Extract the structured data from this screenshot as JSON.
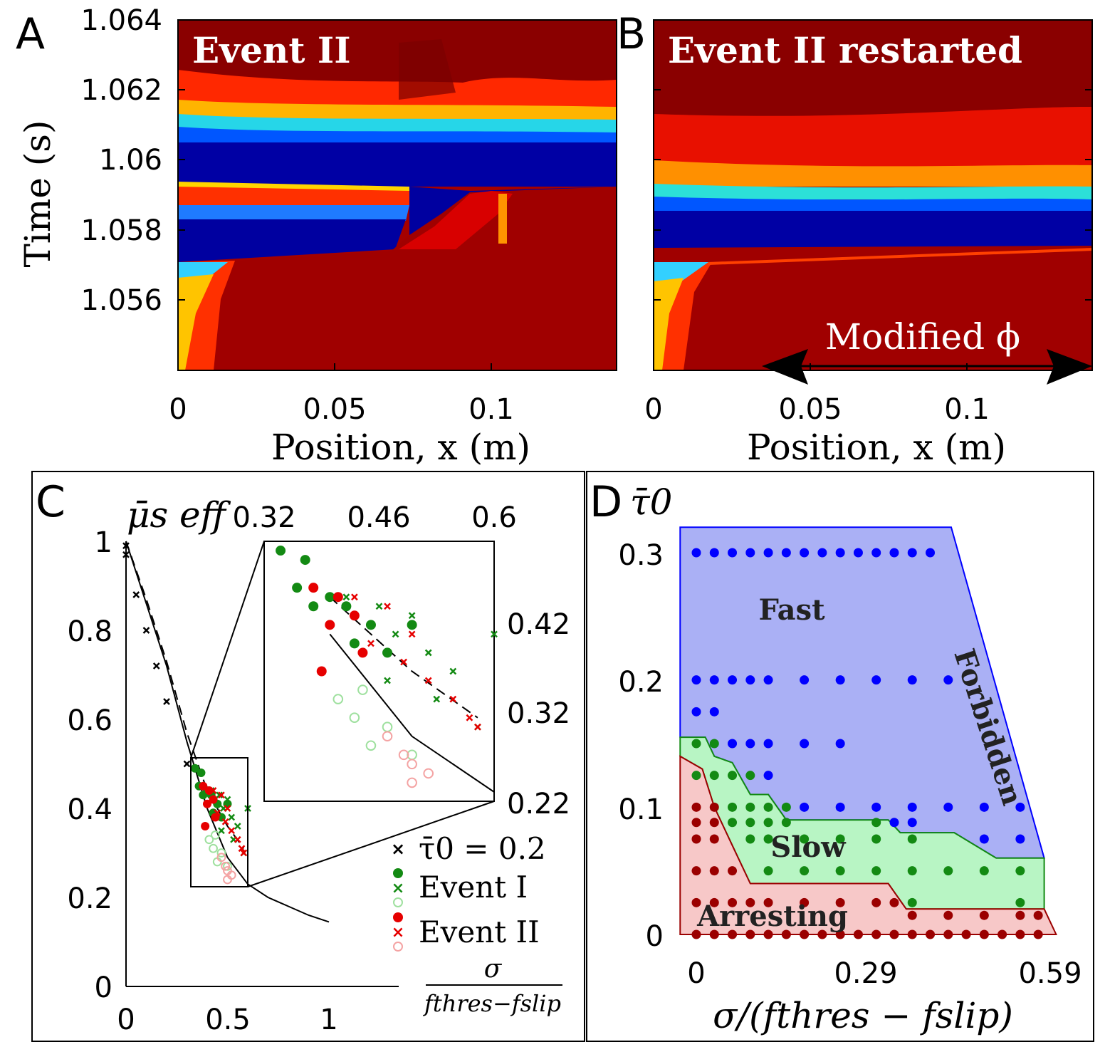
{
  "panelA": {
    "letter": "A",
    "title": "Event II",
    "ylabel": "Time (s)",
    "xlabel": "Position, x (m)",
    "yticks": [
      "1.064",
      "1.062",
      "1.06",
      "1.058",
      "1.056"
    ],
    "xticks": [
      "0",
      "0.05",
      "0.1"
    ]
  },
  "panelB": {
    "letter": "B",
    "title": "Event II restarted",
    "xlabel": "Position, x (m)",
    "xticks": [
      "0",
      "0.05",
      "0.1"
    ],
    "annotation": "Modified ϕ"
  },
  "panelC": {
    "letter": "C",
    "ylabel": "μ̄s eff",
    "xlabel_num": "σ",
    "xlabel_den": "fthres−fslip",
    "yticks": [
      "1",
      "0.8",
      "0.6",
      "0.4",
      "0.2",
      "0"
    ],
    "xticks": [
      "0",
      "0.5",
      "1"
    ],
    "inset_top_ticks": [
      "0.32",
      "0.46",
      "0.6"
    ],
    "inset_right_ticks": [
      "0.42",
      "0.32",
      "0.22"
    ],
    "legend": {
      "tau": "τ̄0 = 0.2",
      "event1": "Event I",
      "event2": "Event II"
    }
  },
  "panelD": {
    "letter": "D",
    "ylabel": "τ̄0",
    "xlabel": "σ/(fthres − fslip)",
    "yticks": [
      "0.3",
      "0.2",
      "0.1",
      "0"
    ],
    "xticks": [
      "0",
      "0.29",
      "0.59"
    ],
    "regions": {
      "fast": "Fast",
      "slow": "Slow",
      "arresting": "Arresting",
      "forbidden": "Forbidden"
    },
    "colors": {
      "fast": "#0000ff",
      "slow": "#138a13",
      "arresting": "#9b0000"
    }
  },
  "chart_data": [
    {
      "type": "heatmap",
      "panel": "A",
      "title": "Event II",
      "xlabel": "Position, x (m)",
      "ylabel": "Time (s)",
      "xlim": [
        0,
        0.14
      ],
      "ylim": [
        1.0542,
        1.0642
      ],
      "front_lower_boundary": [
        [
          0,
          1.057
        ],
        [
          0.016,
          1.057
        ],
        [
          0.07,
          1.0575
        ],
        [
          0.085,
          1.0585
        ],
        [
          0.1,
          1.0591
        ],
        [
          0.14,
          1.0592
        ]
      ],
      "slow_front_upper": [
        [
          0,
          1.0593
        ],
        [
          0.07,
          1.0593
        ]
      ],
      "blue_band_center": [
        [
          0,
          1.0601
        ],
        [
          0.14,
          1.0601
        ]
      ]
    },
    {
      "type": "heatmap",
      "panel": "B",
      "title": "Event II restarted",
      "xlabel": "Position, x (m)",
      "xlim": [
        0,
        0.14
      ],
      "ylim": [
        1.0542,
        1.0642
      ],
      "front_lower_boundary": [
        [
          0,
          1.057
        ],
        [
          0.017,
          1.057
        ],
        [
          0.14,
          1.0575
        ]
      ],
      "blue_band_center": [
        [
          0,
          1.0585
        ],
        [
          0.14,
          1.0587
        ]
      ]
    },
    {
      "type": "scatter",
      "panel": "C",
      "xlim": [
        0,
        1.35
      ],
      "ylim": [
        0,
        1
      ],
      "theory_solid": [
        [
          0,
          1
        ],
        [
          0.1,
          0.86
        ],
        [
          0.2,
          0.72
        ],
        [
          0.3,
          0.55
        ],
        [
          0.4,
          0.4
        ],
        [
          0.5,
          0.29
        ],
        [
          0.6,
          0.23
        ],
        [
          0.7,
          0.2
        ],
        [
          0.8,
          0.18
        ],
        [
          0.9,
          0.16
        ],
        [
          1.0,
          0.145
        ]
      ],
      "theory_dashed": [
        [
          0,
          1
        ],
        [
          0.1,
          0.87
        ],
        [
          0.2,
          0.73
        ],
        [
          0.3,
          0.57
        ],
        [
          0.4,
          0.44
        ],
        [
          0.5,
          0.36
        ],
        [
          0.58,
          0.31
        ]
      ],
      "series": [
        {
          "name": "τ̄0 = 0.2",
          "marker": "x",
          "color": "#000000",
          "points": [
            [
              0,
              0.99
            ],
            [
              0,
              0.97
            ],
            [
              0.05,
              0.88
            ],
            [
              0.1,
              0.8
            ],
            [
              0.15,
              0.72
            ],
            [
              0.2,
              0.64
            ],
            [
              0.3,
              0.5
            ]
          ]
        },
        {
          "name": "Event I",
          "marker": "filled",
          "color": "#138a13",
          "points": [
            [
              0.34,
              0.49
            ],
            [
              0.37,
              0.48
            ],
            [
              0.36,
              0.45
            ],
            [
              0.4,
              0.44
            ],
            [
              0.38,
              0.43
            ],
            [
              0.42,
              0.43
            ],
            [
              0.45,
              0.41
            ],
            [
              0.5,
              0.41
            ],
            [
              0.43,
              0.39
            ],
            [
              0.47,
              0.38
            ]
          ]
        },
        {
          "name": "Event I",
          "marker": "x",
          "color": "#138a13",
          "points": [
            [
              0.42,
              0.44
            ],
            [
              0.46,
              0.43
            ],
            [
              0.5,
              0.42
            ],
            [
              0.48,
              0.4
            ],
            [
              0.52,
              0.38
            ],
            [
              0.55,
              0.36
            ],
            [
              0.6,
              0.4
            ],
            [
              0.47,
              0.35
            ],
            [
              0.53,
              0.33
            ],
            [
              0.58,
              0.3
            ]
          ]
        },
        {
          "name": "Event I",
          "marker": "open",
          "color": "#9ee09e",
          "points": [
            [
              0.41,
              0.33
            ],
            [
              0.44,
              0.34
            ],
            [
              0.43,
              0.31
            ],
            [
              0.47,
              0.3
            ],
            [
              0.45,
              0.28
            ],
            [
              0.5,
              0.27
            ]
          ]
        },
        {
          "name": "Event II",
          "marker": "filled",
          "color": "#e60000",
          "points": [
            [
              0.38,
              0.45
            ],
            [
              0.41,
              0.44
            ],
            [
              0.43,
              0.42
            ],
            [
              0.4,
              0.41
            ],
            [
              0.44,
              0.38
            ],
            [
              0.39,
              0.36
            ]
          ]
        },
        {
          "name": "Event II",
          "marker": "x",
          "color": "#e60000",
          "points": [
            [
              0.43,
              0.44
            ],
            [
              0.47,
              0.43
            ],
            [
              0.5,
              0.4
            ],
            [
              0.45,
              0.39
            ],
            [
              0.49,
              0.37
            ],
            [
              0.52,
              0.35
            ],
            [
              0.55,
              0.33
            ],
            [
              0.57,
              0.31
            ],
            [
              0.58,
              0.3
            ]
          ]
        },
        {
          "name": "Event II",
          "marker": "open",
          "color": "#f4a3a3",
          "points": [
            [
              0.47,
              0.29
            ],
            [
              0.49,
              0.27
            ],
            [
              0.5,
              0.26
            ],
            [
              0.52,
              0.25
            ],
            [
              0.5,
              0.24
            ]
          ]
        }
      ],
      "inset": {
        "xlim": [
          0.32,
          0.6
        ],
        "ylim": [
          0.22,
          0.5
        ]
      }
    },
    {
      "type": "scatter",
      "panel": "D",
      "xlabel": "σ/(fthres − fslip)",
      "ylabel": "τ̄0",
      "xlim": [
        -0.03,
        0.6
      ],
      "ylim": [
        0,
        0.32
      ],
      "regions": [
        {
          "name": "Fast",
          "color": "#aab0f5"
        },
        {
          "name": "Slow",
          "color": "#b8f5c4"
        },
        {
          "name": "Arresting",
          "color": "#f7c8c8"
        }
      ],
      "fast_points": [
        [
          0,
          0.3
        ],
        [
          0.03,
          0.3
        ],
        [
          0.06,
          0.3
        ],
        [
          0.09,
          0.3
        ],
        [
          0.12,
          0.3
        ],
        [
          0.15,
          0.3
        ],
        [
          0.18,
          0.3
        ],
        [
          0.21,
          0.3
        ],
        [
          0.24,
          0.3
        ],
        [
          0.27,
          0.3
        ],
        [
          0.3,
          0.3
        ],
        [
          0.33,
          0.3
        ],
        [
          0.36,
          0.3
        ],
        [
          0.39,
          0.3
        ],
        [
          0,
          0.2
        ],
        [
          0.03,
          0.2
        ],
        [
          0.06,
          0.2
        ],
        [
          0.09,
          0.2
        ],
        [
          0.12,
          0.2
        ],
        [
          0.18,
          0.2
        ],
        [
          0.24,
          0.2
        ],
        [
          0.3,
          0.2
        ],
        [
          0.36,
          0.2
        ],
        [
          0.42,
          0.2
        ],
        [
          0,
          0.175
        ],
        [
          0.03,
          0.175
        ],
        [
          0.06,
          0.15
        ],
        [
          0.09,
          0.15
        ],
        [
          0.12,
          0.15
        ],
        [
          0.18,
          0.15
        ],
        [
          0.24,
          0.15
        ],
        [
          0.12,
          0.125
        ],
        [
          0.18,
          0.1
        ],
        [
          0.24,
          0.1
        ],
        [
          0.3,
          0.1
        ],
        [
          0.36,
          0.1
        ],
        [
          0.42,
          0.1
        ],
        [
          0.48,
          0.1
        ],
        [
          0.54,
          0.1
        ],
        [
          0.33,
          0.088
        ],
        [
          0.36,
          0.088
        ],
        [
          0.48,
          0.075
        ],
        [
          0.54,
          0.075
        ]
      ],
      "slow_points": [
        [
          0,
          0.15
        ],
        [
          0.03,
          0.15
        ],
        [
          0,
          0.125
        ],
        [
          0.03,
          0.125
        ],
        [
          0.06,
          0.125
        ],
        [
          0.09,
          0.125
        ],
        [
          0.06,
          0.1
        ],
        [
          0.09,
          0.1
        ],
        [
          0.12,
          0.1
        ],
        [
          0.15,
          0.1
        ],
        [
          0.06,
          0.088
        ],
        [
          0.09,
          0.088
        ],
        [
          0.12,
          0.088
        ],
        [
          0.15,
          0.088
        ],
        [
          0.3,
          0.088
        ],
        [
          0.09,
          0.075
        ],
        [
          0.12,
          0.075
        ],
        [
          0.18,
          0.075
        ],
        [
          0.24,
          0.075
        ],
        [
          0.3,
          0.075
        ],
        [
          0.36,
          0.075
        ],
        [
          0.12,
          0.05
        ],
        [
          0.18,
          0.05
        ],
        [
          0.24,
          0.05
        ],
        [
          0.3,
          0.05
        ],
        [
          0.36,
          0.05
        ],
        [
          0.42,
          0.05
        ],
        [
          0.48,
          0.05
        ],
        [
          0.54,
          0.05
        ],
        [
          0.36,
          0.025
        ],
        [
          0.54,
          0.025
        ]
      ],
      "arresting_points": [
        [
          0,
          0.1
        ],
        [
          0.03,
          0.1
        ],
        [
          0,
          0.088
        ],
        [
          0.03,
          0.088
        ],
        [
          0,
          0.075
        ],
        [
          0.03,
          0.075
        ],
        [
          0,
          0.05
        ],
        [
          0.03,
          0.05
        ],
        [
          0.06,
          0.05
        ],
        [
          0,
          0.025
        ],
        [
          0.03,
          0.025
        ],
        [
          0.06,
          0.025
        ],
        [
          0.09,
          0.025
        ],
        [
          0.12,
          0.025
        ],
        [
          0.18,
          0.025
        ],
        [
          0.24,
          0.025
        ],
        [
          0.3,
          0.025
        ],
        [
          0.33,
          0.025
        ],
        [
          0.36,
          0.015
        ],
        [
          0.42,
          0.015
        ],
        [
          0.48,
          0.015
        ],
        [
          0.54,
          0.015
        ],
        [
          0.57,
          0.015
        ],
        [
          0,
          0
        ],
        [
          0.03,
          0
        ],
        [
          0.06,
          0
        ],
        [
          0.09,
          0
        ],
        [
          0.12,
          0
        ],
        [
          0.15,
          0
        ],
        [
          0.18,
          0
        ],
        [
          0.21,
          0
        ],
        [
          0.24,
          0
        ],
        [
          0.27,
          0
        ],
        [
          0.3,
          0
        ],
        [
          0.33,
          0
        ],
        [
          0.36,
          0
        ],
        [
          0.39,
          0
        ],
        [
          0.42,
          0
        ],
        [
          0.45,
          0
        ],
        [
          0.48,
          0
        ],
        [
          0.51,
          0
        ],
        [
          0.54,
          0
        ],
        [
          0.57,
          0
        ]
      ]
    }
  ]
}
